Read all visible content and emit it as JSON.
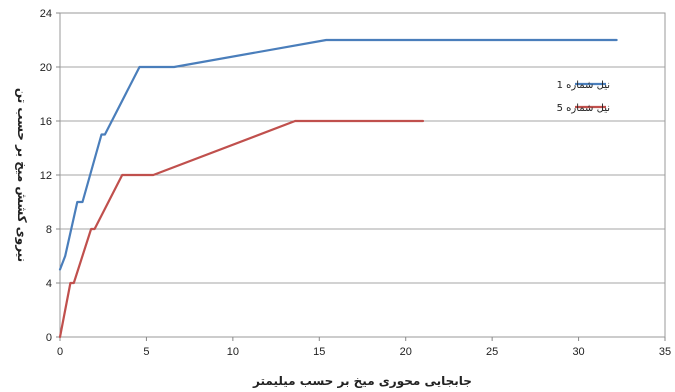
{
  "chart_data": {
    "type": "line",
    "title": "",
    "xlabel": "جابجایی محوری میخ بر حسب میلیمتر",
    "ylabel": "نیروی کشش میخ بر حسب تن",
    "xlim": [
      0,
      35
    ],
    "ylim": [
      0,
      24
    ],
    "x_ticks": [
      "0",
      "5",
      "10",
      "15",
      "20",
      "25",
      "30",
      "35"
    ],
    "y_ticks": [
      "0",
      "4",
      "8",
      "12",
      "16",
      "20",
      "24"
    ],
    "grid": true,
    "legend_position": "right",
    "series": [
      {
        "name": "نیل شماره 1",
        "color": "#4a7ebb",
        "points": [
          [
            0,
            5
          ],
          [
            0.3,
            6
          ],
          [
            1,
            10
          ],
          [
            1.3,
            10
          ],
          [
            2.4,
            15
          ],
          [
            2.6,
            15
          ],
          [
            4.6,
            20
          ],
          [
            6.6,
            20
          ],
          [
            15.4,
            22
          ],
          [
            32.2,
            22
          ]
        ]
      },
      {
        "name": "نیل شماره 5",
        "color": "#c0504d",
        "points": [
          [
            0,
            0
          ],
          [
            0.6,
            4
          ],
          [
            0.8,
            4
          ],
          [
            1.8,
            8
          ],
          [
            2.0,
            8
          ],
          [
            3.6,
            12
          ],
          [
            5.4,
            12
          ],
          [
            13.6,
            16
          ],
          [
            21.0,
            16
          ]
        ]
      }
    ]
  }
}
